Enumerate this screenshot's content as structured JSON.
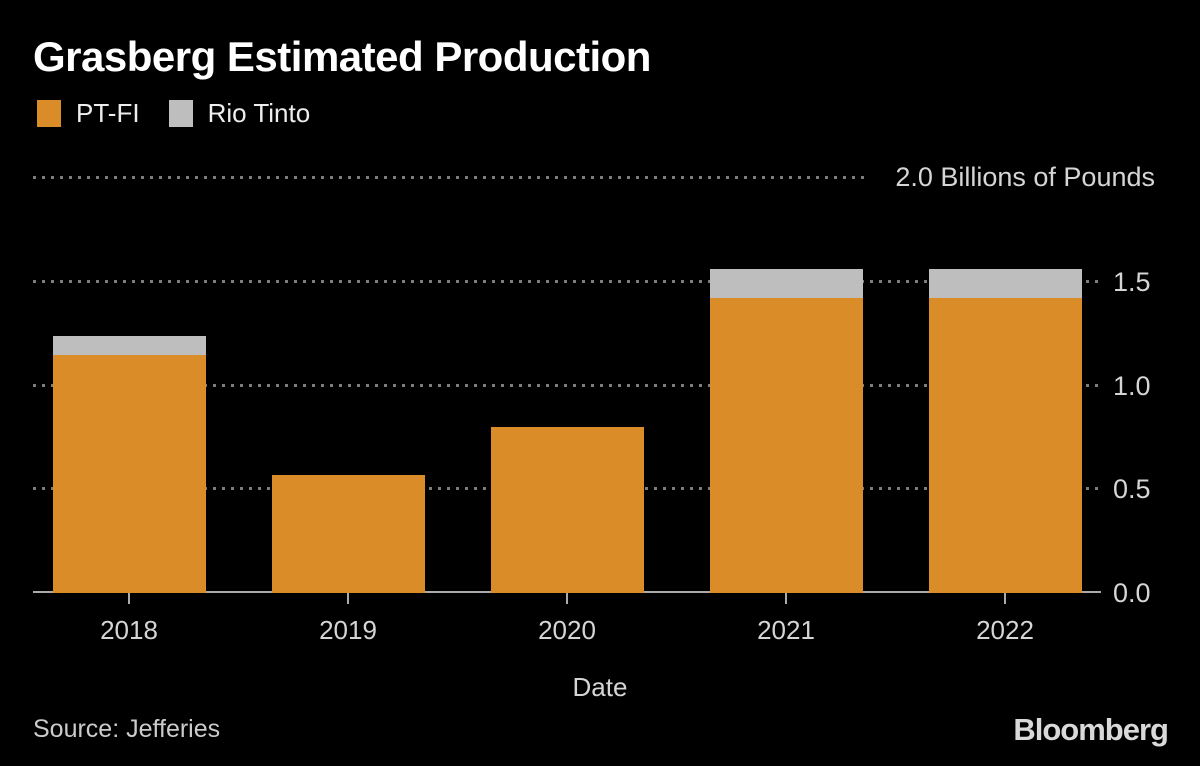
{
  "title": "Grasberg Estimated Production",
  "colors": {
    "background": "#000000",
    "pt_fi": "#D98C28",
    "rio_tinto": "#BEBEBE",
    "grid_dots": "#7D7D7D",
    "axis_line": "#ABABAB",
    "axis_text": "#D5D5D5",
    "title_text": "#FFFFFF",
    "legend_text": "#EDEDED",
    "source_text": "#CBCBCB",
    "brand_text": "#D9D9D9"
  },
  "legend": {
    "position": "top-left",
    "items": [
      {
        "label": "PT-FI",
        "color_key": "pt_fi"
      },
      {
        "label": "Rio Tinto",
        "color_key": "rio_tinto"
      }
    ]
  },
  "chart_data": {
    "type": "bar",
    "stacked": true,
    "title": "Grasberg Estimated Production",
    "categories": [
      "2018",
      "2019",
      "2020",
      "2021",
      "2022"
    ],
    "series": [
      {
        "name": "PT-FI",
        "color_key": "pt_fi",
        "values": [
          1.15,
          0.57,
          0.8,
          1.42,
          1.42
        ]
      },
      {
        "name": "Rio Tinto",
        "color_key": "rio_tinto",
        "values": [
          0.09,
          0,
          0,
          0.14,
          0.14
        ]
      }
    ],
    "totals": [
      1.24,
      0.57,
      0.8,
      1.56,
      1.56
    ],
    "xlabel": "Date",
    "ylabel": "Billions of Pounds",
    "ylim": [
      0,
      2.0
    ],
    "yticks": [
      0,
      0.5,
      1.0,
      1.5,
      2.0
    ],
    "ytick_labels": [
      "0.0",
      "0.5",
      "1.0",
      "1.5"
    ],
    "top_axis_label": "2.0 Billions of Pounds",
    "grid": "horizontal-dotted",
    "legend_position": "top-left"
  },
  "footer": {
    "source": "Source: Jefferies",
    "brand": "Bloomberg"
  }
}
